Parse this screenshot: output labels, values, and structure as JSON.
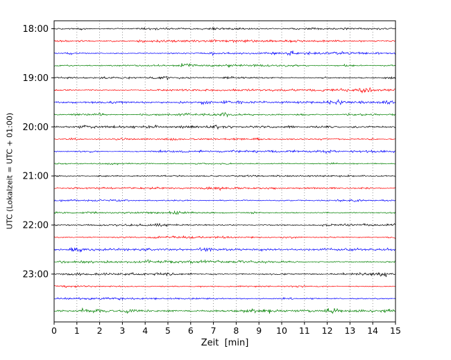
{
  "chart_data": {
    "type": "line",
    "subtype": "seismogram-dayplot",
    "title": "",
    "xlabel": "Zeit  [min]",
    "ylabel": "UTC (Lokalzeit = UTC + 01:00)",
    "xlim": [
      0,
      15
    ],
    "x_ticks": [
      0,
      1,
      2,
      3,
      4,
      5,
      6,
      7,
      8,
      9,
      10,
      11,
      12,
      13,
      14,
      15
    ],
    "y_tick_labels": [
      "18:00",
      "19:00",
      "20:00",
      "21:00",
      "22:00",
      "23:00"
    ],
    "minutes_per_trace": 15,
    "traces_per_hour": 4,
    "trace_colors": [
      "#000000",
      "#ff0000",
      "#0000ff",
      "#008000"
    ],
    "noise_amplitude": 1.2,
    "grid": {
      "vertical": true,
      "style": "dotted",
      "color": "#777777"
    },
    "background": "#ffffff",
    "frame_color": "#000000",
    "traces": [
      {
        "start": "18:00",
        "color": "#000000"
      },
      {
        "start": "18:15",
        "color": "#ff0000"
      },
      {
        "start": "18:30",
        "color": "#0000ff"
      },
      {
        "start": "18:45",
        "color": "#008000"
      },
      {
        "start": "19:00",
        "color": "#000000"
      },
      {
        "start": "19:15",
        "color": "#ff0000"
      },
      {
        "start": "19:30",
        "color": "#0000ff"
      },
      {
        "start": "19:45",
        "color": "#008000"
      },
      {
        "start": "20:00",
        "color": "#000000"
      },
      {
        "start": "20:15",
        "color": "#ff0000"
      },
      {
        "start": "20:30",
        "color": "#0000ff"
      },
      {
        "start": "20:45",
        "color": "#008000"
      },
      {
        "start": "21:00",
        "color": "#000000"
      },
      {
        "start": "21:15",
        "color": "#ff0000"
      },
      {
        "start": "21:30",
        "color": "#0000ff"
      },
      {
        "start": "21:45",
        "color": "#008000"
      },
      {
        "start": "22:00",
        "color": "#000000"
      },
      {
        "start": "22:15",
        "color": "#ff0000"
      },
      {
        "start": "22:30",
        "color": "#0000ff"
      },
      {
        "start": "22:45",
        "color": "#008000"
      },
      {
        "start": "23:00",
        "color": "#000000"
      },
      {
        "start": "23:15",
        "color": "#ff0000"
      },
      {
        "start": "23:30",
        "color": "#0000ff"
      },
      {
        "start": "23:45",
        "color": "#008000"
      }
    ]
  }
}
